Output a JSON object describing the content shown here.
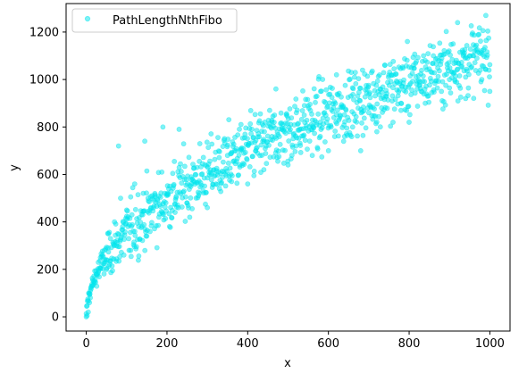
{
  "chart_data": {
    "type": "scatter",
    "xlabel": "x",
    "ylabel": "y",
    "xlim": [
      -50,
      1050
    ],
    "ylim": [
      -60,
      1320
    ],
    "x_ticks": [
      0,
      200,
      400,
      600,
      800,
      1000
    ],
    "y_ticks": [
      0,
      200,
      400,
      600,
      800,
      1000,
      1200
    ],
    "grid": false,
    "legend_position": "top-left",
    "series": [
      {
        "name": "PathLengthNthFibo",
        "color": "#00e5ee",
        "point_count": 1000,
        "trend": "y ≈ 35 * sqrt(x)",
        "approx_points": [
          [
            0,
            0
          ],
          [
            2,
            5
          ],
          [
            5,
            20
          ],
          [
            8,
            60
          ],
          [
            10,
            110
          ],
          [
            15,
            130
          ],
          [
            20,
            150
          ],
          [
            25,
            180
          ],
          [
            30,
            230
          ],
          [
            35,
            250
          ],
          [
            40,
            260
          ],
          [
            45,
            280
          ],
          [
            50,
            200
          ],
          [
            55,
            350
          ],
          [
            60,
            330
          ],
          [
            70,
            400
          ],
          [
            75,
            300
          ],
          [
            80,
            720
          ],
          [
            85,
            500
          ],
          [
            90,
            380
          ],
          [
            100,
            450
          ],
          [
            110,
            280
          ],
          [
            120,
            560
          ],
          [
            130,
            380
          ],
          [
            140,
            430
          ],
          [
            145,
            740
          ],
          [
            150,
            340
          ],
          [
            160,
            460
          ],
          [
            170,
            520
          ],
          [
            180,
            420
          ],
          [
            190,
            800
          ],
          [
            200,
            520
          ],
          [
            220,
            440
          ],
          [
            230,
            790
          ],
          [
            250,
            480
          ],
          [
            260,
            590
          ],
          [
            280,
            520
          ],
          [
            300,
            460
          ],
          [
            310,
            600
          ],
          [
            330,
            540
          ],
          [
            350,
            680
          ],
          [
            360,
            570
          ],
          [
            380,
            640
          ],
          [
            400,
            560
          ],
          [
            420,
            700
          ],
          [
            440,
            620
          ],
          [
            460,
            760
          ],
          [
            470,
            960
          ],
          [
            500,
            640
          ],
          [
            520,
            720
          ],
          [
            540,
            850
          ],
          [
            560,
            680
          ],
          [
            580,
            760
          ],
          [
            600,
            700
          ],
          [
            620,
            1020
          ],
          [
            640,
            760
          ],
          [
            660,
            800
          ],
          [
            680,
            700
          ],
          [
            700,
            860
          ],
          [
            720,
            780
          ],
          [
            740,
            1060
          ],
          [
            760,
            820
          ],
          [
            780,
            900
          ],
          [
            800,
            820
          ],
          [
            820,
            960
          ],
          [
            840,
            900
          ],
          [
            860,
            1100
          ],
          [
            880,
            950
          ],
          [
            900,
            1000
          ],
          [
            920,
            1240
          ],
          [
            940,
            920
          ],
          [
            960,
            1100
          ],
          [
            980,
            1000
          ],
          [
            990,
            1270
          ],
          [
            1000,
            950
          ]
        ]
      }
    ]
  }
}
